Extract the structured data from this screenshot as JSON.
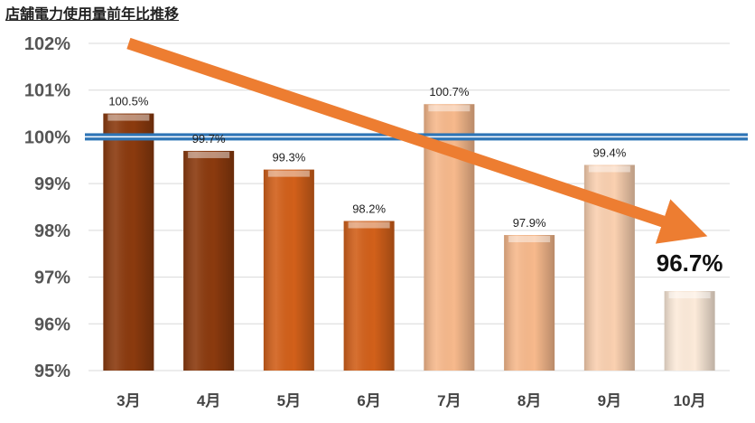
{
  "chart_data": {
    "type": "bar",
    "title": "店舗電力使用量前年比推移",
    "categories": [
      "3月",
      "4月",
      "5月",
      "6月",
      "7月",
      "8月",
      "9月",
      "10月"
    ],
    "values": [
      100.5,
      99.7,
      99.3,
      98.2,
      100.7,
      97.9,
      99.4,
      96.7
    ],
    "value_labels": [
      "100.5%",
      "99.7%",
      "99.3%",
      "98.2%",
      "100.7%",
      "97.9%",
      "99.4%",
      "96.7%"
    ],
    "bar_colors": [
      "#8B3A0E",
      "#8B3A0E",
      "#D2601A",
      "#D2601A",
      "#F7B98C",
      "#F7B98C",
      "#FAD0B0",
      "#FDEBDA"
    ],
    "highlight_index": 7,
    "y_ticks": [
      95,
      96,
      97,
      98,
      99,
      100,
      101,
      102
    ],
    "y_tick_labels": [
      "95%",
      "96%",
      "97%",
      "98%",
      "99%",
      "100%",
      "101%",
      "102%"
    ],
    "ylim": [
      95,
      102
    ],
    "reference_line": {
      "value": 100,
      "color": "#2E75B6"
    },
    "trend_arrow": {
      "from": [
        0.5,
        102
      ],
      "to": [
        7.5,
        98
      ],
      "color": "#ED7D31"
    },
    "grid": true,
    "xlabel": "",
    "ylabel": ""
  }
}
